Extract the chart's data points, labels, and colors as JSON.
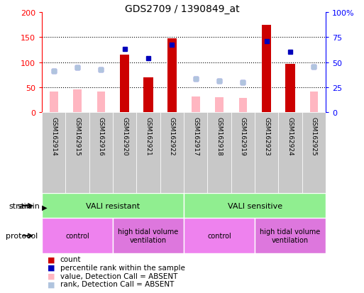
{
  "title": "GDS2709 / 1390849_at",
  "samples": [
    "GSM162914",
    "GSM162915",
    "GSM162916",
    "GSM162920",
    "GSM162921",
    "GSM162922",
    "GSM162917",
    "GSM162918",
    "GSM162919",
    "GSM162923",
    "GSM162924",
    "GSM162925"
  ],
  "count_values": [
    0,
    0,
    0,
    115,
    70,
    147,
    0,
    0,
    0,
    175,
    97,
    0
  ],
  "rank_pct": [
    41,
    45,
    42.5,
    63,
    54,
    67.5,
    33.5,
    31,
    30,
    71,
    60,
    45.5
  ],
  "value_absent": [
    41,
    46,
    42,
    0,
    0,
    0,
    31,
    30,
    29,
    0,
    0,
    42
  ],
  "rank_absent_pct": [
    41,
    45,
    42.5,
    0,
    0,
    0,
    33.5,
    31,
    30,
    0,
    0,
    45.5
  ],
  "ylim_left": [
    0,
    200
  ],
  "ylim_right": [
    0,
    100
  ],
  "y_ticks_left": [
    0,
    50,
    100,
    150,
    200
  ],
  "y_ticks_right": [
    0,
    25,
    50,
    75,
    100
  ],
  "y_tick_labels_right": [
    "0",
    "25",
    "50",
    "75",
    "100%"
  ],
  "bar_color": "#cc0000",
  "rank_dot_color": "#0000bb",
  "value_absent_color": "#ffb6c1",
  "rank_absent_color": "#b0c4de",
  "sample_bg_color": "#c8c8c8",
  "chart_bg_color": "#ffffff",
  "strain_color": "#90ee90",
  "protocol_color_light": "#ee82ee",
  "protocol_color_dark": "#dd77dd"
}
